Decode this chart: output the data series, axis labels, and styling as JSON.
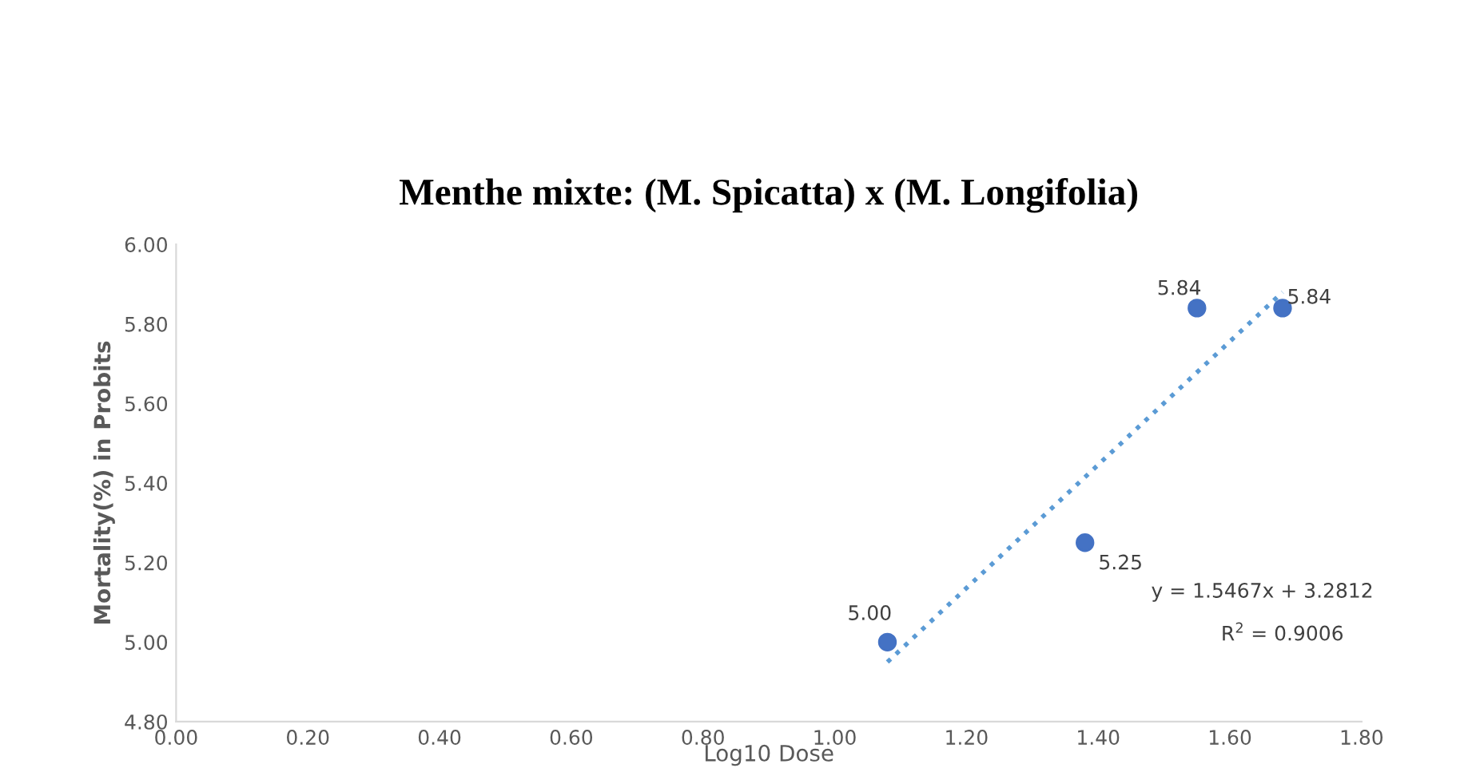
{
  "chart_data": {
    "type": "scatter",
    "title": "Menthe mixte: (M. Spicatta) x (M. Longifolia)",
    "xlabel": "Log10 Dose",
    "ylabel": "Mortality(%) in Probits",
    "xlim": [
      0,
      1.8
    ],
    "xticks": [
      {
        "value": 0,
        "label": "0.00"
      },
      {
        "value": 0.2,
        "label": "0.20"
      },
      {
        "value": 0.4,
        "label": "0.40"
      },
      {
        "value": 0.6,
        "label": "0.60"
      },
      {
        "value": 0.8,
        "label": "0.80"
      },
      {
        "value": 1.0,
        "label": "1.00"
      },
      {
        "value": 1.2,
        "label": "1.20"
      },
      {
        "value": 1.4,
        "label": "1.40"
      },
      {
        "value": 1.6,
        "label": "1.60"
      },
      {
        "value": 1.8,
        "label": "1.80"
      }
    ],
    "ylim": [
      4.8,
      6.0
    ],
    "yticks": [
      {
        "value": 4.8,
        "label": "4.80"
      },
      {
        "value": 5.0,
        "label": "5.00"
      },
      {
        "value": 5.2,
        "label": "5.20"
      },
      {
        "value": 5.4,
        "label": "5.40"
      },
      {
        "value": 5.6,
        "label": "5.60"
      },
      {
        "value": 5.8,
        "label": "5.80"
      },
      {
        "value": 6.0,
        "label": "6.00"
      }
    ],
    "grid": false,
    "marker": "circle",
    "series": [
      {
        "color": "#4472c4",
        "x": [
          1.08,
          1.38,
          1.55,
          1.68
        ],
        "values": [
          5.0,
          5.25,
          5.84,
          5.84
        ],
        "value_labels": [
          "5.00",
          "5.25",
          "5.84",
          "5.84"
        ]
      },
      {
        "type": "line",
        "color": "#5b9bd5",
        "line_style": "dotted",
        "marker": "none",
        "x": [
          1.08,
          1.68
        ],
        "values": [
          4.95,
          5.88
        ]
      }
    ],
    "annotations": [
      "y = 1.5467x + 3.2812",
      "R$^{2}$ = 0.9006"
    ]
  }
}
